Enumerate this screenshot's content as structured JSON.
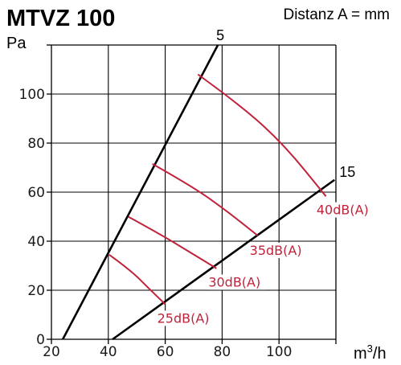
{
  "chart_data": {
    "type": "line",
    "title": "MTVZ 100",
    "note": "Distanz A = mm",
    "ylabel": "Pa",
    "xlabel_base": "m",
    "xlabel_sup": "3",
    "xlabel_tail": "/h",
    "xlim": [
      20,
      120
    ],
    "ylim": [
      0,
      120
    ],
    "x_ticks": [
      20,
      40,
      60,
      80,
      100
    ],
    "y_ticks": [
      0,
      20,
      40,
      60,
      80,
      100
    ],
    "grid": true,
    "boundary_lines": [
      {
        "name": "5",
        "points": [
          [
            24,
            0
          ],
          [
            78.5,
            120
          ]
        ]
      },
      {
        "name": "15",
        "points": [
          [
            41.5,
            0
          ],
          [
            119.5,
            65
          ]
        ]
      }
    ],
    "series": [
      {
        "name": "25dB(A)",
        "label_at": [
          60,
          14.3
        ],
        "points": [
          [
            40.3,
            34.5
          ],
          [
            48,
            28
          ],
          [
            54,
            21
          ],
          [
            60,
            14.3
          ]
        ]
      },
      {
        "name": "30dB(A)",
        "label_at": [
          78,
          29
        ],
        "points": [
          [
            47,
            50
          ],
          [
            58,
            43
          ],
          [
            68,
            36
          ],
          [
            78,
            28.9
          ]
        ]
      },
      {
        "name": "35dB(A)",
        "label_at": [
          92.5,
          42
        ],
        "points": [
          [
            55.5,
            71.5
          ],
          [
            70,
            62
          ],
          [
            82,
            52
          ],
          [
            92.5,
            42.3
          ]
        ]
      },
      {
        "name": "40dB(A)",
        "label_at": [
          116,
          58.5
        ],
        "points": [
          [
            71.5,
            108
          ],
          [
            87,
            95
          ],
          [
            102,
            79
          ],
          [
            116.5,
            58.3
          ]
        ]
      }
    ]
  }
}
